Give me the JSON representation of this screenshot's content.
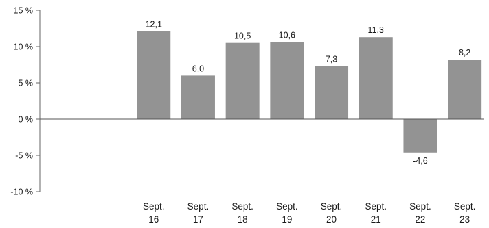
{
  "chart_data": {
    "type": "bar",
    "categories": [
      [
        "",
        ""
      ],
      [
        "",
        ""
      ],
      [
        "Sept.",
        "16"
      ],
      [
        "Sept.",
        "17"
      ],
      [
        "Sept.",
        "18"
      ],
      [
        "Sept.",
        "19"
      ],
      [
        "Sept.",
        "20"
      ],
      [
        "Sept.",
        "21"
      ],
      [
        "Sept.",
        "22"
      ],
      [
        "Sept.",
        "23"
      ]
    ],
    "values": [
      0,
      0,
      12.1,
      6.0,
      10.5,
      10.6,
      7.3,
      11.3,
      -4.6,
      8.2
    ],
    "value_labels": [
      "",
      "",
      "12,1",
      "6,0",
      "10,5",
      "10,6",
      "7,3",
      "11,3",
      "-4,6",
      "8,2"
    ],
    "ylim": [
      -10,
      15
    ],
    "yticks": [
      15,
      10,
      5,
      0,
      -5,
      -10
    ],
    "ytick_labels": [
      "15 %",
      "10 %",
      "5 %",
      "0 %",
      "-5 %",
      "-10 %"
    ],
    "grid": false,
    "colors": {
      "bar": "#939393",
      "axis": "#666666",
      "zero_line": "#555555"
    }
  }
}
